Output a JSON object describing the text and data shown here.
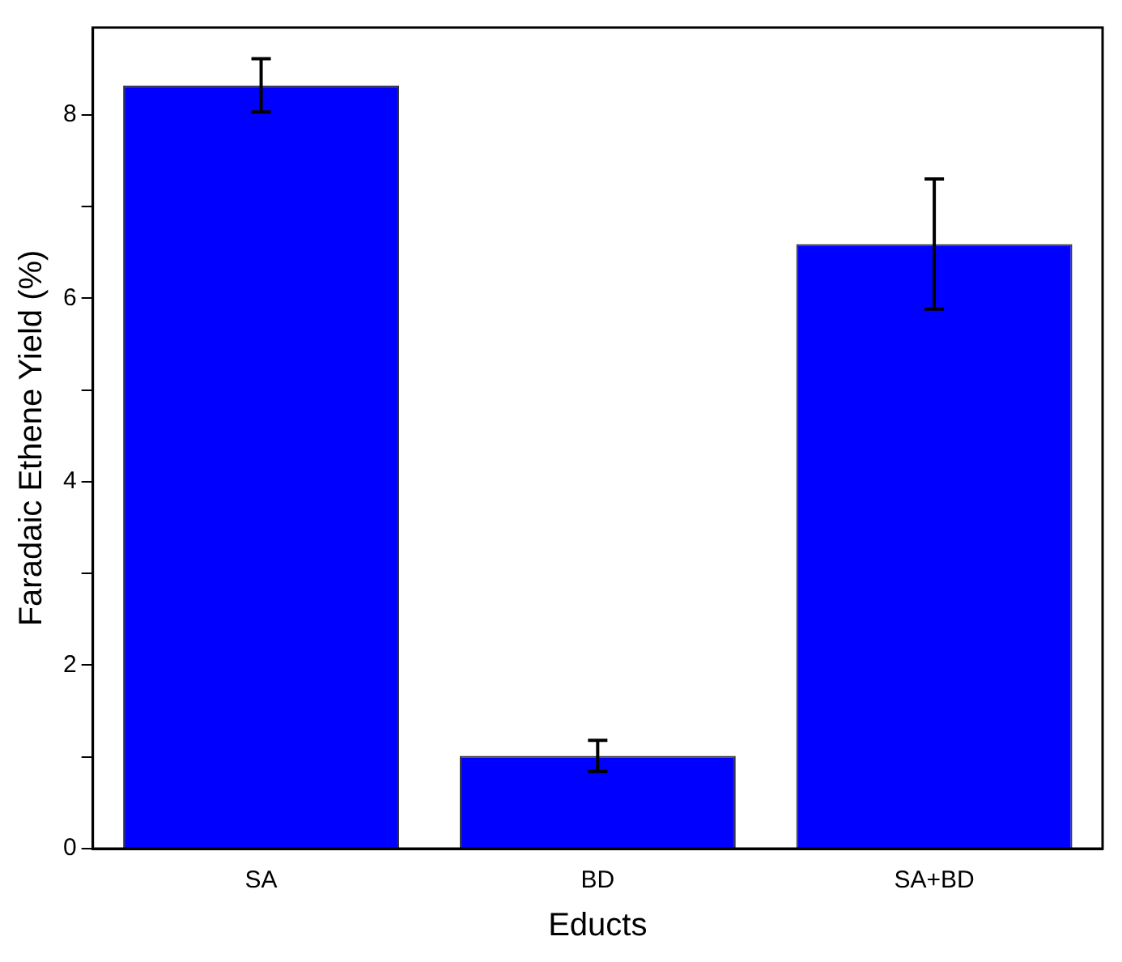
{
  "chart_data": {
    "type": "bar",
    "xlabel": "Educts",
    "ylabel": "Faradaic Ethene Yield (%)",
    "categories": [
      "SA",
      "BD",
      "SA+BD"
    ],
    "values": [
      8.32,
      1.01,
      6.59
    ],
    "errors": [
      0.29,
      0.17,
      0.71
    ],
    "color": "#0000ff",
    "ylim": [
      0,
      8.95
    ],
    "yticks": [
      0,
      {
        "value": 1,
        "label": null
      },
      2,
      {
        "value": 3,
        "label": null
      },
      4,
      {
        "value": 5,
        "label": null
      },
      6,
      {
        "value": 7,
        "label": null
      },
      8
    ],
    "grid": false,
    "legend": false
  }
}
